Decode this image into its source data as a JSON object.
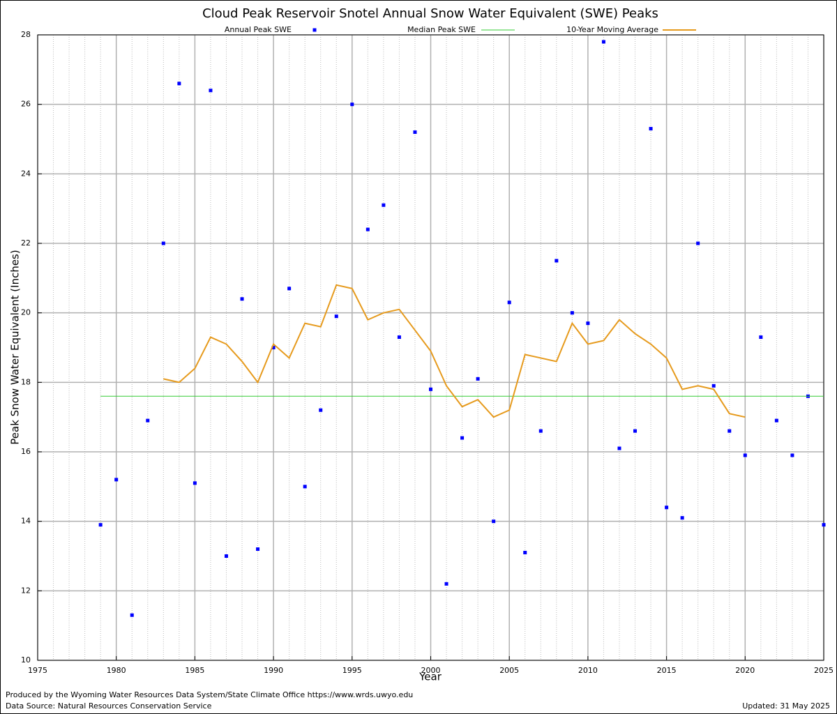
{
  "chart_data": {
    "type": "scatter",
    "title": "Cloud Peak Reservoir Snotel Annual Snow Water Equivalent (SWE) Peaks",
    "x_label": "Year",
    "y_label": "Peak Snow Water Equivalent (Inches)",
    "xlim": [
      1975,
      2025
    ],
    "xticks": [
      1975,
      1980,
      1985,
      1990,
      1995,
      2000,
      2005,
      2010,
      2015,
      2020,
      2025
    ],
    "ylim": [
      10,
      28
    ],
    "yticks": [
      10,
      12,
      14,
      16,
      18,
      20,
      22,
      24,
      26,
      28
    ],
    "grid": true,
    "legend": "top",
    "series": [
      {
        "name": "Annual Peak SWE",
        "type": "scatter",
        "color": "#0000ff",
        "x": [
          1979,
          1980,
          1981,
          1982,
          1983,
          1984,
          1985,
          1986,
          1987,
          1988,
          1989,
          1990,
          1991,
          1992,
          1993,
          1994,
          1995,
          1996,
          1997,
          1998,
          1999,
          2000,
          2001,
          2002,
          2003,
          2004,
          2005,
          2006,
          2007,
          2008,
          2009,
          2010,
          2011,
          2012,
          2013,
          2014,
          2015,
          2016,
          2017,
          2018,
          2019,
          2020,
          2021,
          2022,
          2023,
          2024,
          2025
        ],
        "values": [
          13.9,
          15.2,
          11.3,
          16.9,
          22.0,
          26.6,
          15.1,
          26.4,
          13.0,
          20.4,
          13.2,
          19.0,
          20.7,
          15.0,
          17.2,
          19.9,
          26.0,
          22.4,
          23.1,
          19.3,
          25.2,
          17.8,
          12.2,
          16.4,
          18.1,
          14.0,
          20.3,
          13.1,
          16.6,
          21.5,
          20.0,
          19.7,
          27.8,
          16.1,
          16.6,
          25.3,
          14.4,
          14.1,
          22.0,
          17.9,
          16.6,
          15.9,
          19.3,
          16.9,
          15.9,
          17.6,
          13.9
        ]
      },
      {
        "name": "Median Peak SWE",
        "type": "line",
        "color": "#33cc33",
        "x": [
          1979,
          2025
        ],
        "values": [
          17.6,
          17.6
        ]
      },
      {
        "name": "10-Year Moving Average",
        "type": "line",
        "color": "#e69a1c",
        "x": [
          1983,
          1984,
          1985,
          1986,
          1987,
          1988,
          1989,
          1990,
          1991,
          1992,
          1993,
          1994,
          1995,
          1996,
          1997,
          1998,
          1999,
          2000,
          2001,
          2002,
          2003,
          2004,
          2005,
          2006,
          2007,
          2008,
          2009,
          2010,
          2011,
          2012,
          2013,
          2014,
          2015,
          2016,
          2017,
          2018,
          2019,
          2020
        ],
        "values": [
          18.1,
          18.0,
          18.4,
          19.3,
          19.1,
          18.6,
          18.0,
          19.1,
          18.7,
          19.7,
          19.6,
          20.8,
          20.7,
          19.8,
          20.0,
          20.1,
          19.5,
          18.9,
          17.9,
          17.3,
          17.5,
          17.0,
          17.2,
          18.8,
          18.7,
          18.6,
          19.7,
          19.1,
          19.2,
          19.8,
          19.4,
          19.1,
          18.7,
          17.8,
          17.9,
          17.8,
          17.1,
          17.0
        ]
      }
    ],
    "footer_left": [
      "Produced by the Wyoming Water Resources Data System/State Climate Office https://www.wrds.uwyo.edu",
      "Data Source: Natural Resources Conservation Service"
    ],
    "footer_right": "Updated: 31 May 2025"
  }
}
